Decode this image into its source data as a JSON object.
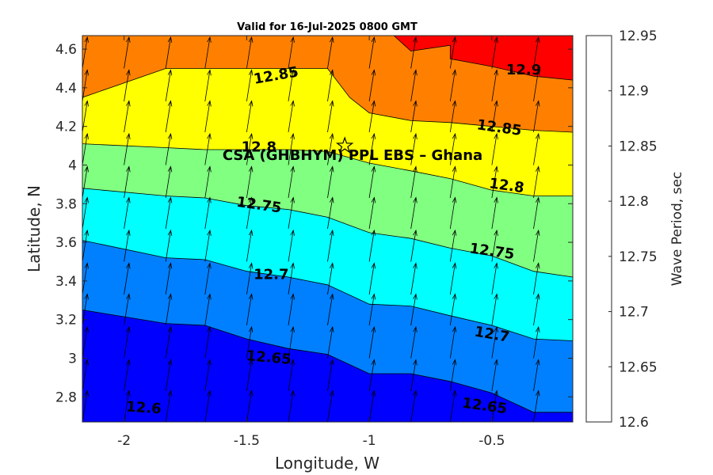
{
  "chart_data": {
    "type": "contour",
    "title": "Valid for 16-Jul-2025 0800 GMT",
    "xlabel": "Longitude, W",
    "ylabel": "Latitude, N",
    "colorbar_label": "Wave Period, sec",
    "xlim": [
      -2.17,
      -0.17
    ],
    "ylim": [
      2.67,
      4.67
    ],
    "xticks": [
      -2,
      -1.5,
      -1,
      -0.5
    ],
    "xtick_labels": [
      "-2",
      "-1.5",
      "-1",
      "-0.5"
    ],
    "yticks": [
      2.8,
      3,
      3.2,
      3.4,
      3.6,
      3.8,
      4,
      4.2,
      4.4,
      4.6
    ],
    "ytick_labels": [
      "2.8",
      "3",
      "3.2",
      "3.4",
      "3.6",
      "3.8",
      "4",
      "4.2",
      "4.4",
      "4.6"
    ],
    "levels": [
      12.6,
      12.65,
      12.7,
      12.75,
      12.8,
      12.85,
      12.9,
      12.95
    ],
    "level_labels": [
      "12.6",
      "12.65",
      "12.7",
      "12.75",
      "12.8",
      "12.85",
      "12.9",
      "12.95"
    ],
    "band_colors": [
      "#0000ff",
      "#0080ff",
      "#00ffff",
      "#80ff80",
      "#ffff00",
      "#ff8000",
      "#ff0000"
    ],
    "contours": [
      {
        "level": 12.65,
        "points": [
          [
            -2.17,
            3.25
          ],
          [
            -1.83,
            3.18
          ],
          [
            -1.67,
            3.17
          ],
          [
            -1.5,
            3.1
          ],
          [
            -1.33,
            3.05
          ],
          [
            -1.17,
            3.02
          ],
          [
            -1.0,
            2.92
          ],
          [
            -0.83,
            2.92
          ],
          [
            -0.67,
            2.88
          ],
          [
            -0.5,
            2.82
          ],
          [
            -0.33,
            2.72
          ],
          [
            -0.17,
            2.72
          ]
        ]
      },
      {
        "level": 12.7,
        "points": [
          [
            -2.17,
            3.61
          ],
          [
            -1.83,
            3.52
          ],
          [
            -1.67,
            3.51
          ],
          [
            -1.5,
            3.45
          ],
          [
            -1.33,
            3.42
          ],
          [
            -1.17,
            3.38
          ],
          [
            -1.0,
            3.28
          ],
          [
            -0.83,
            3.27
          ],
          [
            -0.67,
            3.22
          ],
          [
            -0.5,
            3.17
          ],
          [
            -0.33,
            3.1
          ],
          [
            -0.17,
            3.09
          ]
        ]
      },
      {
        "level": 12.75,
        "points": [
          [
            -2.17,
            3.88
          ],
          [
            -1.83,
            3.84
          ],
          [
            -1.67,
            3.83
          ],
          [
            -1.5,
            3.79
          ],
          [
            -1.33,
            3.77
          ],
          [
            -1.17,
            3.73
          ],
          [
            -1.0,
            3.65
          ],
          [
            -0.83,
            3.62
          ],
          [
            -0.67,
            3.57
          ],
          [
            -0.5,
            3.53
          ],
          [
            -0.33,
            3.45
          ],
          [
            -0.17,
            3.42
          ]
        ]
      },
      {
        "level": 12.8,
        "points": [
          [
            -2.17,
            4.11
          ],
          [
            -1.83,
            4.09
          ],
          [
            -1.67,
            4.08
          ],
          [
            -1.5,
            4.08
          ],
          [
            -1.33,
            4.08
          ],
          [
            -1.17,
            4.07
          ],
          [
            -1.0,
            4.01
          ],
          [
            -0.83,
            3.97
          ],
          [
            -0.67,
            3.93
          ],
          [
            -0.5,
            3.87
          ],
          [
            -0.33,
            3.84
          ],
          [
            -0.17,
            3.84
          ]
        ]
      },
      {
        "level": 12.85,
        "points": [
          [
            -2.17,
            4.35
          ],
          [
            -1.83,
            4.5
          ],
          [
            -1.67,
            4.5
          ],
          [
            -1.5,
            4.5
          ],
          [
            -1.33,
            4.5
          ],
          [
            -1.17,
            4.5
          ],
          [
            -1.08,
            4.35
          ],
          [
            -1.0,
            4.27
          ],
          [
            -0.83,
            4.23
          ],
          [
            -0.67,
            4.22
          ],
          [
            -0.5,
            4.2
          ],
          [
            -0.33,
            4.18
          ],
          [
            -0.17,
            4.17
          ]
        ]
      },
      {
        "level": 12.9,
        "points": [
          [
            -0.9,
            4.67
          ],
          [
            -0.83,
            4.59
          ],
          [
            -0.67,
            4.62
          ],
          [
            -0.67,
            4.55
          ],
          [
            -0.5,
            4.51
          ],
          [
            -0.33,
            4.46
          ],
          [
            -0.17,
            4.44
          ]
        ]
      }
    ],
    "contour_labels": [
      {
        "text": "12.6",
        "x": -1.92,
        "y": 2.74,
        "angle": 4
      },
      {
        "text": "12.65",
        "x": -1.41,
        "y": 3.0,
        "angle": 5
      },
      {
        "text": "12.65",
        "x": -0.53,
        "y": 2.75,
        "angle": 8
      },
      {
        "text": "12.7",
        "x": -1.4,
        "y": 3.43,
        "angle": 0
      },
      {
        "text": "12.7",
        "x": -0.5,
        "y": 3.12,
        "angle": 10
      },
      {
        "text": "12.75",
        "x": -1.45,
        "y": 3.79,
        "angle": 8
      },
      {
        "text": "12.75",
        "x": -0.5,
        "y": 3.55,
        "angle": 8
      },
      {
        "text": "12.8",
        "x": -1.45,
        "y": 4.09,
        "angle": 0
      },
      {
        "text": "12.8",
        "x": -0.44,
        "y": 3.89,
        "angle": 8
      },
      {
        "text": "12.85",
        "x": -1.38,
        "y": 4.46,
        "angle": -10
      },
      {
        "text": "12.85",
        "x": -0.47,
        "y": 4.19,
        "angle": 8
      },
      {
        "text": "12.9",
        "x": -0.37,
        "y": 4.49,
        "angle": 0
      }
    ],
    "vectors": {
      "x": [
        -2.17,
        -2.0,
        -1.83,
        -1.67,
        -1.5,
        -1.33,
        -1.17,
        -1.0,
        -0.83,
        -0.67,
        -0.5,
        -0.33,
        -0.17
      ],
      "y": [
        2.67,
        2.83,
        3.0,
        3.17,
        3.33,
        3.5,
        3.67,
        3.83,
        4.0,
        4.17,
        4.33,
        4.5,
        4.67
      ],
      "direction_deg": 9
    },
    "annotation": {
      "text": "CSA (GHBHYM) PPL EBS  – Ghana",
      "x": -1.1,
      "y": 4.1,
      "marker": "star"
    }
  }
}
